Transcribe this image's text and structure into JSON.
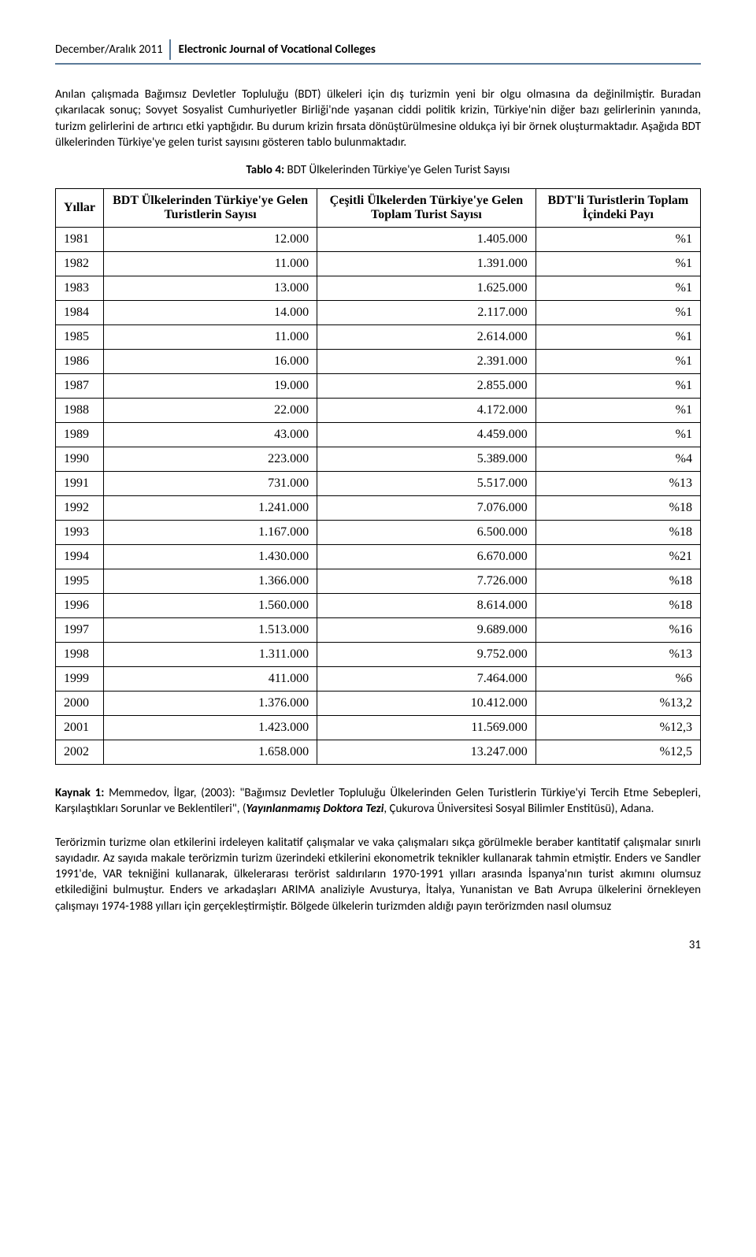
{
  "header": {
    "date": "December/Aralık 2011",
    "journal": "Electronic Journal of Vocational Colleges"
  },
  "paragraph1": "Anılan çalışmada Bağımsız Devletler Topluluğu (BDT) ülkeleri için dış turizmin yeni bir olgu olmasına da değinilmiştir. Buradan çıkarılacak sonuç; Sovyet Sosyalist Cumhuriyetler Birliği'nde yaşanan ciddi politik krizin, Türkiye'nin diğer bazı gelirlerinin yanında, turizm gelirlerini de artırıcı etki yaptığıdır. Bu durum krizin fırsata dönüştürülmesine oldukça iyi bir örnek oluşturmaktadır. Aşağıda BDT ülkelerinden Türkiye'ye gelen turist sayısını gösteren tablo bulunmaktadır.",
  "tableCaption": {
    "label": "Tablo   4:",
    "text": " BDT Ülkelerinden Türkiye'ye Gelen Turist Sayısı"
  },
  "table": {
    "columns": [
      "Yıllar",
      "BDT Ülkelerinden Türkiye'ye Gelen Turistlerin Sayısı",
      "Çeşitli Ülkelerden Türkiye'ye Gelen Toplam Turist Sayısı",
      "BDT'li Turistlerin Toplam İçindeki Payı"
    ],
    "rows": [
      [
        "1981",
        "12.000",
        "1.405.000",
        "%1"
      ],
      [
        "1982",
        "11.000",
        "1.391.000",
        "%1"
      ],
      [
        "1983",
        "13.000",
        "1.625.000",
        "%1"
      ],
      [
        "1984",
        "14.000",
        "2.117.000",
        "%1"
      ],
      [
        "1985",
        "11.000",
        "2.614.000",
        "%1"
      ],
      [
        "1986",
        "16.000",
        "2.391.000",
        "%1"
      ],
      [
        "1987",
        "19.000",
        "2.855.000",
        "%1"
      ],
      [
        "1988",
        "22.000",
        "4.172.000",
        "%1"
      ],
      [
        "1989",
        "43.000",
        "4.459.000",
        "%1"
      ],
      [
        "1990",
        "223.000",
        "5.389.000",
        "%4"
      ],
      [
        "1991",
        "731.000",
        "5.517.000",
        "%13"
      ],
      [
        "1992",
        "1.241.000",
        "7.076.000",
        "%18"
      ],
      [
        "1993",
        "1.167.000",
        "6.500.000",
        "%18"
      ],
      [
        "1994",
        "1.430.000",
        "6.670.000",
        "%21"
      ],
      [
        "1995",
        "1.366.000",
        "7.726.000",
        "%18"
      ],
      [
        "1996",
        "1.560.000",
        "8.614.000",
        "%18"
      ],
      [
        "1997",
        "1.513.000",
        "9.689.000",
        "%16"
      ],
      [
        "1998",
        "1.311.000",
        "9.752.000",
        "%13"
      ],
      [
        "1999",
        "411.000",
        "7.464.000",
        "%6"
      ],
      [
        "2000",
        "1.376.000",
        "10.412.000",
        "%13,2"
      ],
      [
        "2001",
        "1.423.000",
        "11.569.000",
        "%12,3"
      ],
      [
        "2002",
        "1.658.000",
        "13.247.000",
        "%12,5"
      ]
    ]
  },
  "kaynak": {
    "prefix": "Kaynak 1:",
    "body1": " Memmedov, İlgar, (2003): \"Bağımsız Devletler Topluluğu Ülkelerinden Gelen Turistlerin Türkiye'yi Tercih Etme Sebepleri, Karşılaştıkları Sorunlar ve Beklentileri\", (",
    "italic": "Yayınlanmamış Doktora Tezi",
    "body2": ", Çukurova Üniversitesi Sosyal Bilimler Enstitüsü), Adana."
  },
  "paragraph2": "Terörizmin turizme olan etkilerini irdeleyen kalitatif çalışmalar ve vaka çalışmaları sıkça görülmekle beraber kantitatif çalışmalar sınırlı sayıdadır. Az sayıda makale terörizmin turizm üzerindeki etkilerini ekonometrik teknikler kullanarak tahmin etmiştir. Enders ve Sandler 1991'de, VAR tekniğini kullanarak, ülkelerarası terörist saldırıların 1970-1991 yılları arasında İspanya'nın turist akımını olumsuz etkilediğini bulmuştur. Enders ve arkadaşları ARIMA analiziyle Avusturya, İtalya, Yunanistan ve Batı Avrupa ülkelerini örnekleyen çalışmayı 1974-1988 yılları için gerçekleştirmiştir. Bölgede ülkelerin turizmden aldığı payın terörizmden nasıl olumsuz",
  "pageNumber": "31"
}
